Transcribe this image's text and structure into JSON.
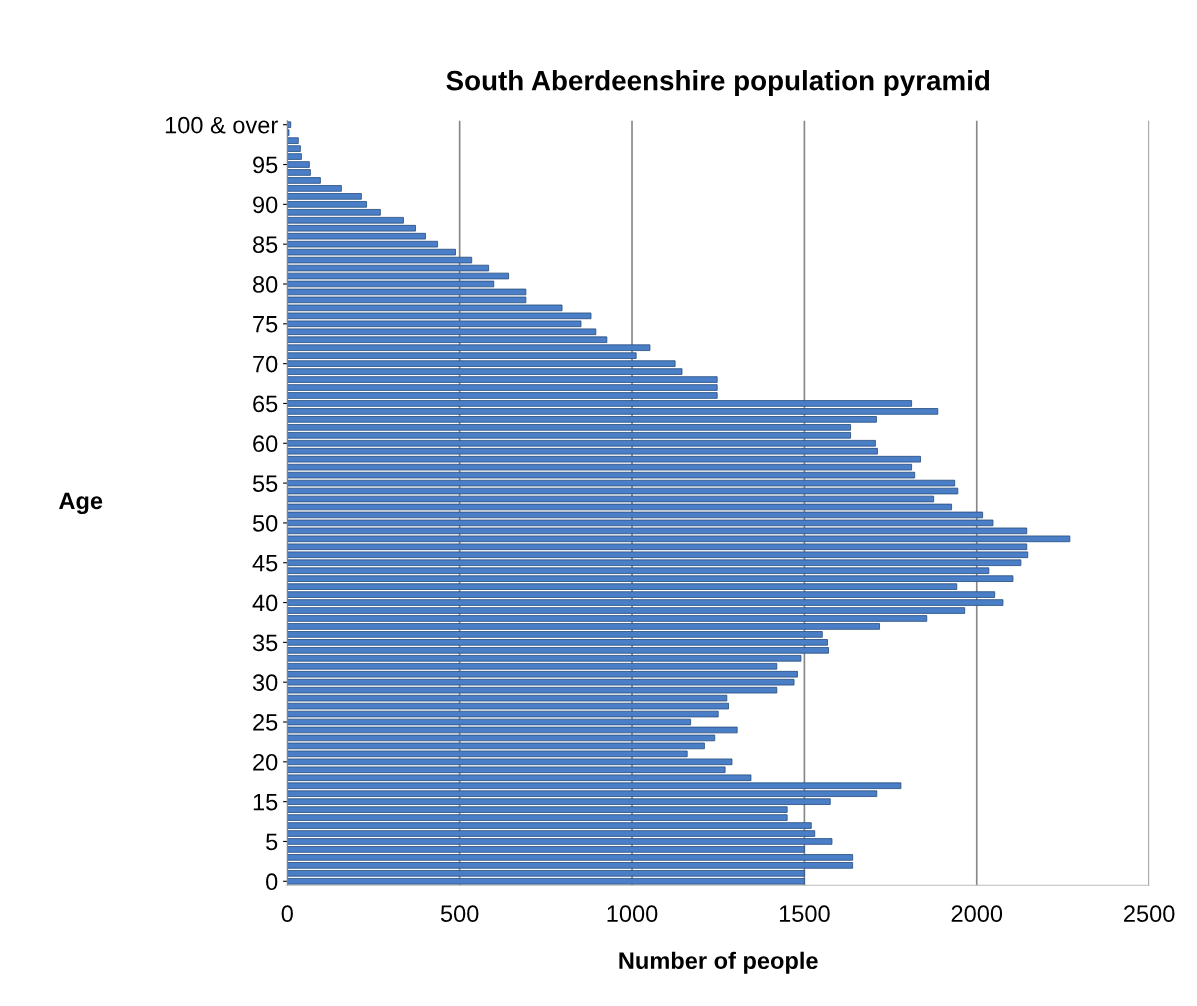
{
  "chart_data": {
    "type": "bar",
    "orientation": "horizontal",
    "title": "South Aberdeenshire population pyramid",
    "xlabel": "Number of people",
    "ylabel": "Age",
    "categories": [
      "100 & over",
      null,
      null,
      null,
      null,
      "95",
      null,
      null,
      null,
      null,
      "90",
      null,
      null,
      null,
      null,
      "85",
      null,
      null,
      null,
      null,
      "80",
      null,
      null,
      null,
      null,
      "75",
      null,
      null,
      null,
      null,
      "70",
      null,
      null,
      null,
      null,
      "65",
      null,
      null,
      null,
      null,
      "60",
      null,
      null,
      null,
      null,
      "55",
      null,
      null,
      null,
      null,
      "50",
      null,
      null,
      null,
      null,
      "45",
      null,
      null,
      null,
      null,
      "40",
      null,
      null,
      null,
      null,
      "35",
      null,
      null,
      null,
      null,
      "30",
      null,
      null,
      null,
      null,
      "25",
      null,
      null,
      null,
      null,
      "20",
      null,
      null,
      null,
      null,
      "15",
      null,
      null,
      null,
      null,
      "5",
      null,
      null,
      null,
      null,
      "0"
    ],
    "values": [
      10,
      5,
      32,
      38,
      41,
      64,
      67,
      96,
      157,
      215,
      230,
      270,
      337,
      372,
      401,
      436,
      488,
      535,
      584,
      642,
      599,
      692,
      692,
      797,
      881,
      852,
      895,
      927,
      1052,
      1012,
      1125,
      1145,
      1247,
      1247,
      1247,
      1811,
      1887,
      1709,
      1634,
      1634,
      1706,
      1712,
      1837,
      1811,
      1820,
      1936,
      1945,
      1875,
      1927,
      2017,
      2047,
      2145,
      2270,
      2145,
      2148,
      2128,
      2035,
      2105,
      1942,
      2052,
      2076,
      1965,
      1855,
      1718,
      1552,
      1567,
      1570,
      1490,
      1420,
      1480,
      1470,
      1420,
      1275,
      1280,
      1250,
      1170,
      1305,
      1240,
      1210,
      1160,
      1290,
      1270,
      1345,
      1780,
      1710,
      1575,
      1450,
      1450,
      1520,
      1530,
      1580,
      1500,
      1640,
      1640,
      1500,
      1500
    ],
    "color": "#4a7fc8",
    "xlim": [
      0,
      2500
    ],
    "xticks": [
      0,
      500,
      1000,
      1500,
      2000,
      2500
    ],
    "grid": "x"
  }
}
